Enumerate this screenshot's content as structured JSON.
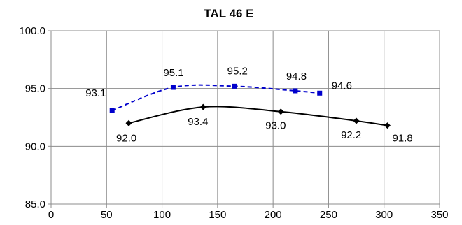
{
  "chart_data": {
    "type": "line",
    "title": "TAL 46 E",
    "xlim": [
      0,
      350
    ],
    "ylim": [
      85,
      100
    ],
    "x_ticks": [
      "0",
      "50",
      "100",
      "150",
      "200",
      "250",
      "300",
      "350"
    ],
    "y_ticks": [
      "85.0",
      "90.0",
      "95.0",
      "100.0"
    ],
    "grid": true,
    "series": [
      {
        "color": "#0000cc",
        "line_style": "dashed",
        "marker": "square",
        "x": [
          55,
          110,
          165,
          220,
          242
        ],
        "y": [
          93.1,
          95.1,
          95.2,
          94.8,
          94.6
        ],
        "labels": [
          "93.1",
          "95.1",
          "95.2",
          "94.8",
          "94.6"
        ]
      },
      {
        "color": "#000000",
        "line_style": "solid",
        "marker": "diamond",
        "x": [
          70,
          137,
          207,
          275,
          303
        ],
        "y": [
          92.0,
          93.4,
          93.0,
          92.2,
          91.8
        ],
        "labels": [
          "92.0",
          "93.4",
          "93.0",
          "92.2",
          "91.8"
        ]
      }
    ]
  }
}
